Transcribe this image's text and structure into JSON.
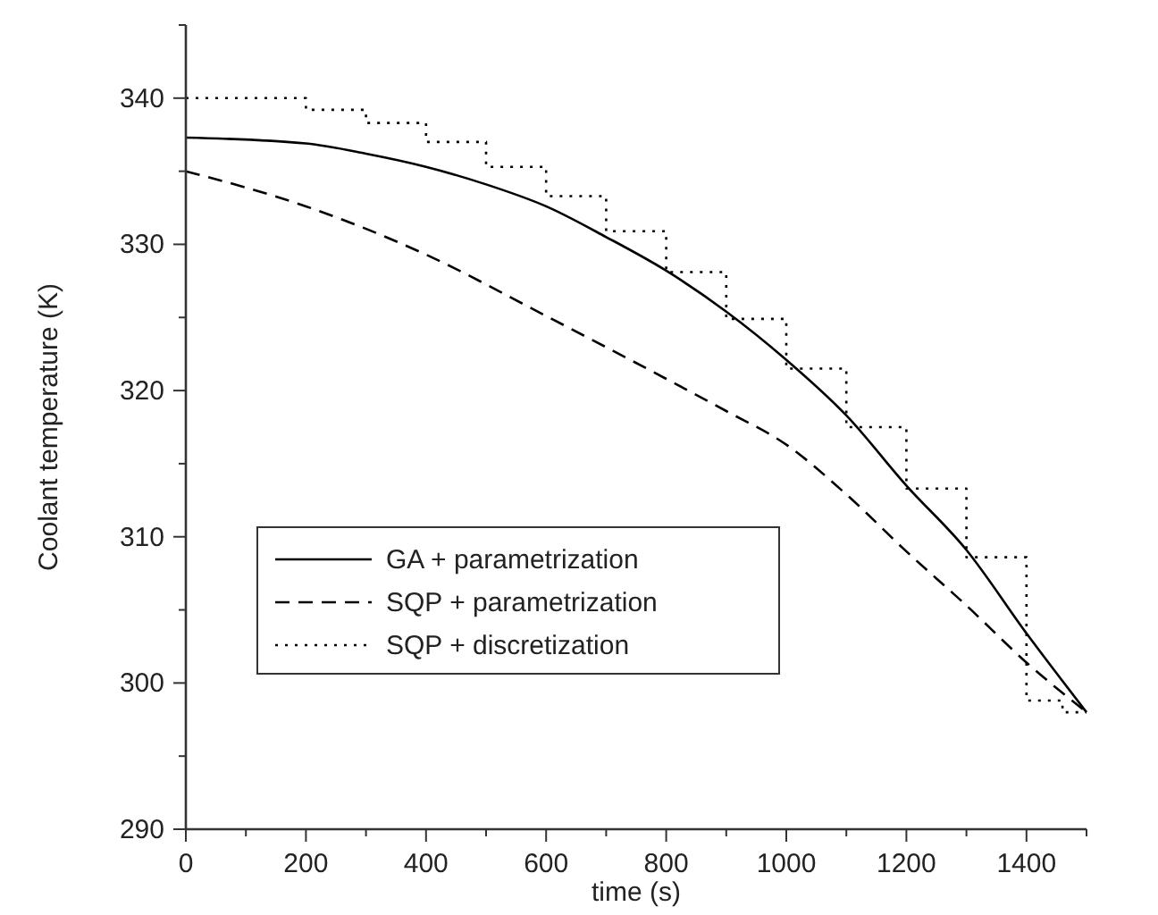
{
  "chart_data": {
    "type": "line",
    "xlabel": "time (s)",
    "ylabel": "Coolant temperature (K)",
    "xlim": [
      0,
      1500
    ],
    "ylim": [
      290,
      345
    ],
    "xticks": [
      0,
      {
        "value": 100,
        "label": null
      },
      200,
      {
        "value": 300,
        "label": null
      },
      400,
      {
        "value": 500,
        "label": null
      },
      600,
      {
        "value": 700,
        "label": null
      },
      800,
      {
        "value": 900,
        "label": null
      },
      1000,
      {
        "value": 1100,
        "label": null
      },
      1200,
      {
        "value": 1300,
        "label": null
      },
      1400,
      {
        "value": 1500,
        "label": null
      }
    ],
    "yticks": [
      290,
      {
        "value": 295,
        "label": null
      },
      300,
      {
        "value": 305,
        "label": null
      },
      310,
      {
        "value": 315,
        "label": null
      },
      320,
      {
        "value": 325,
        "label": null
      },
      330,
      {
        "value": 335,
        "label": null
      },
      340,
      {
        "value": 345,
        "label": null
      }
    ],
    "legend": "left",
    "grid": false,
    "series": [
      {
        "name": "GA + parametrization",
        "color": "#000000",
        "line_style": "solid",
        "x": [
          0,
          200,
          300,
          400,
          500,
          600,
          700,
          800,
          900,
          1000,
          1100,
          1200,
          1300,
          1400,
          1500
        ],
        "values": [
          337.3,
          336.9,
          336.2,
          335.3,
          334.1,
          332.6,
          330.5,
          328.2,
          325.4,
          322.1,
          318.3,
          313.5,
          309.1,
          303.4,
          298.0
        ]
      },
      {
        "name": "SQP + parametrization",
        "color": "#000000",
        "line_style": "dashed",
        "x": [
          0,
          200,
          400,
          600,
          800,
          900,
          1000,
          1100,
          1200,
          1300,
          1400,
          1500
        ],
        "values": [
          335.0,
          332.6,
          329.3,
          325.1,
          320.8,
          318.6,
          316.3,
          312.9,
          309.0,
          305.3,
          301.4,
          298.0
        ]
      },
      {
        "name": "SQP + discretization",
        "color": "#000000",
        "line_style": "dotted",
        "type": "step",
        "x": [
          0,
          200,
          300,
          400,
          500,
          600,
          700,
          800,
          900,
          1000,
          1100,
          1200,
          1300,
          1400,
          1460,
          1500
        ],
        "values": [
          340.0,
          339.2,
          338.3,
          337.0,
          335.3,
          333.3,
          330.9,
          328.1,
          324.9,
          321.5,
          317.5,
          313.3,
          308.6,
          298.8,
          298.0,
          298.0
        ]
      }
    ]
  }
}
